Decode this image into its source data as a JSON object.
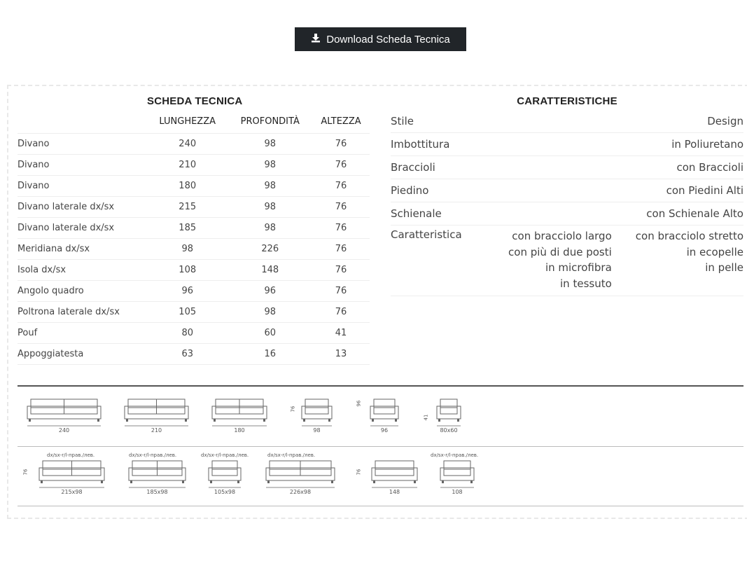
{
  "download_label": "Download Scheda Tecnica",
  "scheda": {
    "title": "SCHEDA TECNICA",
    "headers": [
      "",
      "LUNGHEZZA",
      "PROFONDITÀ",
      "ALTEZZA"
    ],
    "rows": [
      [
        "Divano",
        "240",
        "98",
        "76"
      ],
      [
        "Divano",
        "210",
        "98",
        "76"
      ],
      [
        "Divano",
        "180",
        "98",
        "76"
      ],
      [
        "Divano laterale dx/sx",
        "215",
        "98",
        "76"
      ],
      [
        "Divano laterale dx/sx",
        "185",
        "98",
        "76"
      ],
      [
        "Meridiana dx/sx",
        "98",
        "226",
        "76"
      ],
      [
        "Isola dx/sx",
        "108",
        "148",
        "76"
      ],
      [
        "Angolo quadro",
        "96",
        "96",
        "76"
      ],
      [
        "Poltrona laterale dx/sx",
        "105",
        "98",
        "76"
      ],
      [
        "Pouf",
        "80",
        "60",
        "41"
      ],
      [
        "Appoggiatesta",
        "63",
        "16",
        "13"
      ]
    ]
  },
  "caratteristiche": {
    "title": "CARATTERISTICHE",
    "rows": [
      {
        "label": "Stile",
        "value": "Design"
      },
      {
        "label": "Imbottitura",
        "value": "in Poliuretano"
      },
      {
        "label": "Braccioli",
        "value": "con Braccioli"
      },
      {
        "label": "Piedino",
        "value": "con Piedini Alti"
      },
      {
        "label": "Schienale",
        "value": "con Schienale Alto"
      }
    ],
    "caratteristica": {
      "label": "Caratteristica",
      "col1": [
        "con bracciolo largo",
        "con più di due posti",
        "in microfibra",
        "in tessuto"
      ],
      "col2": [
        "con bracciolo stretto",
        "in ecopelle",
        "in pelle"
      ]
    }
  },
  "diagrams": {
    "row1": [
      "240",
      "210",
      "180",
      "98",
      "96",
      "80x60"
    ],
    "row1_heights": [
      "76",
      "96",
      "41"
    ],
    "row2": [
      "215x98",
      "185x98",
      "105x98",
      "226x98",
      "148",
      "108"
    ],
    "row2_heights": [
      "76",
      "76"
    ],
    "side_note": "dx/sx-r/l-прав./лев."
  }
}
